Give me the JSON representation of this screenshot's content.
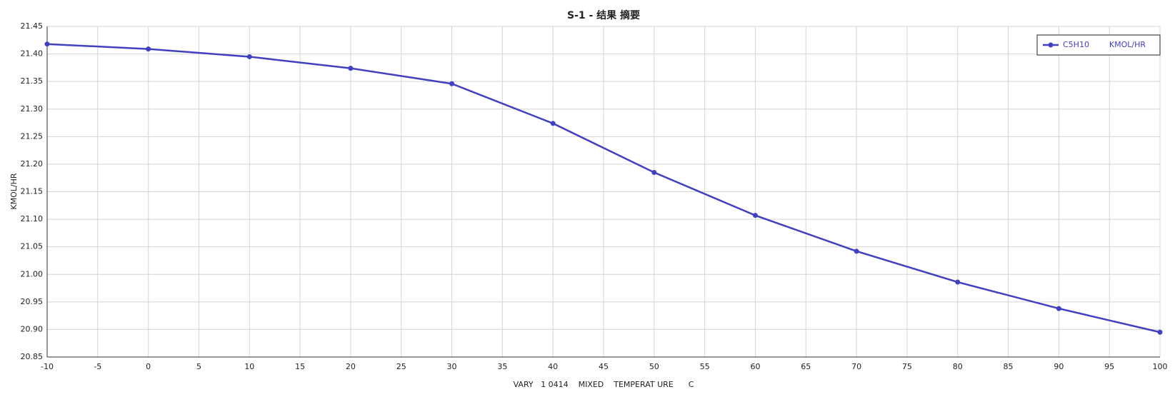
{
  "chart_data": {
    "type": "line",
    "title": "S-1 - 结果 摘要",
    "x_label": "VARY   1 0414    MIXED    TEMPERAT URE      C",
    "y_label": "KMOL/HR",
    "x": [
      -10,
      0,
      10,
      20,
      30,
      40,
      50,
      60,
      70,
      80,
      90,
      100
    ],
    "series": [
      {
        "name": "C5H10        KMOL/HR",
        "color": "#4040c0",
        "values": [
          21.418,
          21.409,
          21.395,
          21.374,
          21.346,
          21.274,
          21.185,
          21.107,
          21.042,
          20.986,
          20.938,
          20.895
        ]
      }
    ],
    "xlim": [
      -10,
      100
    ],
    "xticks": [
      -10,
      -5,
      0,
      5,
      10,
      15,
      20,
      25,
      30,
      35,
      40,
      45,
      50,
      55,
      60,
      65,
      70,
      75,
      80,
      85,
      90,
      95,
      100
    ],
    "ylim": [
      20.85,
      21.45
    ],
    "yticks": [
      20.85,
      {
        "value": 20.9,
        "label": "20.90"
      },
      20.95,
      {
        "value": 21.0,
        "label": "21.00"
      },
      21.05,
      {
        "value": 21.1,
        "label": "21.10"
      },
      21.15,
      {
        "value": 21.2,
        "label": "21.20"
      },
      21.25,
      {
        "value": 21.3,
        "label": "21.30"
      },
      21.35,
      {
        "value": 21.4,
        "label": "21.40"
      },
      21.45
    ],
    "grid": true,
    "legend": "top-right"
  }
}
